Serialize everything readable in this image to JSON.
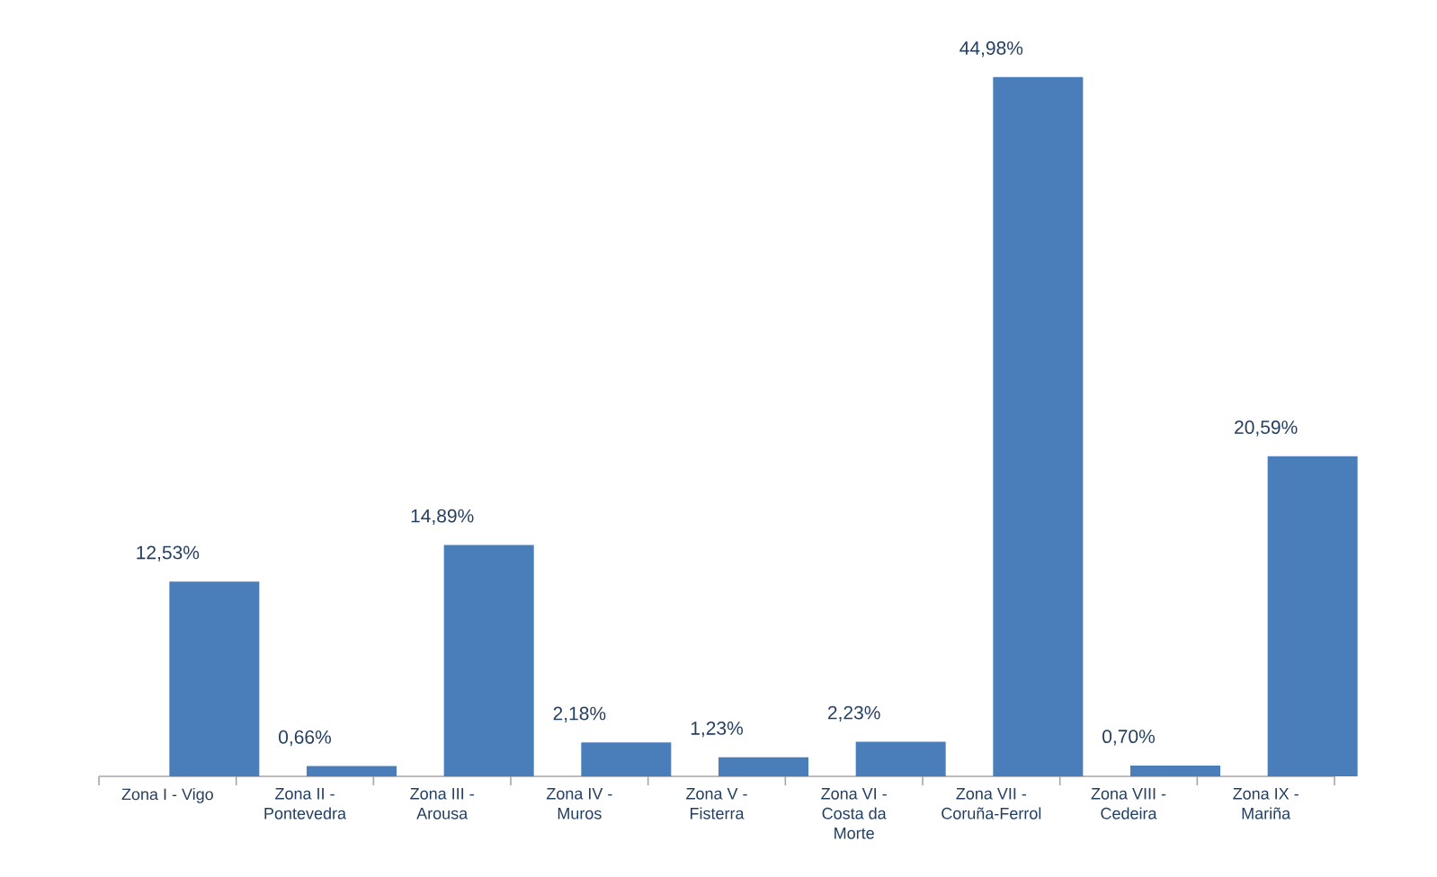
{
  "chart_data": {
    "type": "bar",
    "categories": [
      "Zona I - Vigo",
      "Zona II - Pontevedra",
      "Zona III - Arousa",
      "Zona IV - Muros",
      "Zona V - Fisterra",
      "Zona VI - Costa da Morte",
      "Zona VII - Coruña-Ferrol",
      "Zona VIII - Cedeira",
      "Zona IX - Mariña"
    ],
    "values": [
      12.53,
      0.66,
      14.89,
      2.18,
      1.23,
      2.23,
      44.98,
      0.7,
      20.59
    ],
    "value_labels": [
      "12,53%",
      "0,66%",
      "14,89%",
      "2,18%",
      "1,23%",
      "2,23%",
      "44,98%",
      "0,70%",
      "20,59%"
    ],
    "color": "#4a7ebb"
  }
}
